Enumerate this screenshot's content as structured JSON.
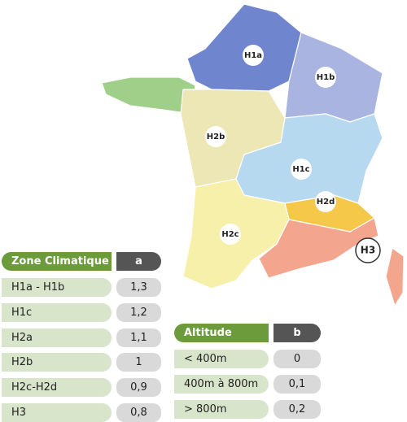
{
  "map": {
    "zones": [
      "H1a",
      "H1b",
      "H2b",
      "H1c",
      "H2d",
      "H2c",
      "H3"
    ]
  },
  "zone_table": {
    "header": [
      "Zone Climatique",
      "a"
    ],
    "rows": [
      [
        "H1a - H1b",
        "1,3"
      ],
      [
        "H1c",
        "1,2"
      ],
      [
        "H2a",
        "1,1"
      ],
      [
        "H2b",
        "1"
      ],
      [
        "H2c-H2d",
        "0,9"
      ],
      [
        "H3",
        "0,8"
      ]
    ]
  },
  "altitude_table": {
    "header": [
      "Altitude",
      "b"
    ],
    "rows": [
      [
        "< 400m",
        "0"
      ],
      [
        "400m à 800m",
        "0,1"
      ],
      [
        "> 800m",
        "0,2"
      ]
    ]
  }
}
